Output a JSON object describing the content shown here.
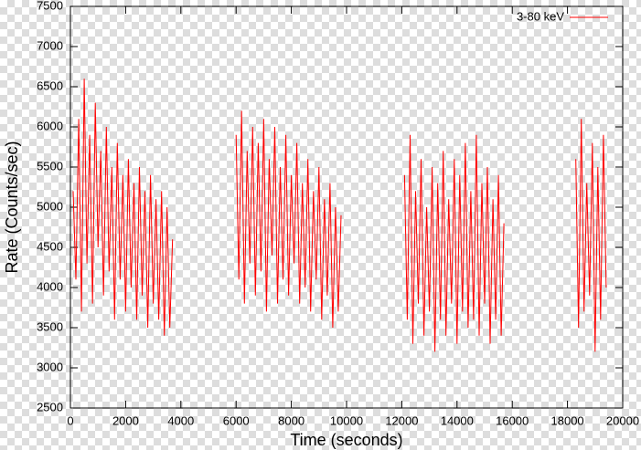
{
  "chart_data": {
    "type": "line",
    "x_label": "Time (seconds)",
    "y_label": "Rate (Counts/sec)",
    "x": [
      100,
      200,
      300,
      400,
      500,
      600,
      700,
      800,
      900,
      1000,
      1100,
      1200,
      1300,
      1400,
      1500,
      1600,
      1700,
      1800,
      1900,
      2000,
      2100,
      2200,
      2300,
      2400,
      2500,
      2600,
      2700,
      2800,
      2900,
      3000,
      3100,
      3200,
      3300,
      3400,
      3500,
      3600,
      3700,
      4850,
      6000,
      6100,
      6200,
      6300,
      6400,
      6500,
      6600,
      6700,
      6800,
      6900,
      7000,
      7100,
      7200,
      7300,
      7400,
      7500,
      7600,
      7700,
      7800,
      7900,
      8000,
      8100,
      8200,
      8300,
      8400,
      8500,
      8600,
      8700,
      8800,
      8900,
      9000,
      9100,
      9200,
      9300,
      9400,
      9500,
      9600,
      9700,
      9800,
      11000,
      12100,
      12200,
      12300,
      12400,
      12500,
      12600,
      12700,
      12800,
      12900,
      13000,
      13100,
      13200,
      13300,
      13400,
      13500,
      13600,
      13700,
      13800,
      13900,
      14000,
      14100,
      14200,
      14300,
      14400,
      14500,
      14600,
      14700,
      14800,
      14900,
      15000,
      15100,
      15200,
      15300,
      15400,
      15500,
      15600,
      15700,
      17000,
      18300,
      18400,
      18500,
      18600,
      18700,
      18800,
      18900,
      19000,
      19100,
      19200,
      19300,
      19400
    ],
    "series": [
      {
        "name": "3-80 keV",
        "color": "#ff0000",
        "values": [
          5200,
          4100,
          6100,
          3700,
          6600,
          4300,
          5900,
          3800,
          6300,
          4500,
          5700,
          3900,
          6000,
          4200,
          5500,
          3600,
          5800,
          4100,
          5400,
          3700,
          5600,
          4000,
          5300,
          3600,
          5500,
          3900,
          5200,
          3500,
          5400,
          3800,
          5100,
          3600,
          5200,
          3400,
          5000,
          3500,
          4600,
          null,
          5900,
          4100,
          6200,
          3800,
          5700,
          4300,
          6000,
          3900,
          5800,
          4200,
          6100,
          3700,
          5600,
          4400,
          6000,
          3800,
          5500,
          4100,
          5900,
          3900,
          5400,
          4300,
          5800,
          3800,
          5300,
          4000,
          5600,
          3700,
          5200,
          4100,
          5500,
          3600,
          5100,
          3900,
          5300,
          3500,
          5000,
          3700,
          4900,
          null,
          5400,
          3600,
          5900,
          3300,
          5200,
          3800,
          5600,
          3400,
          5000,
          3700,
          5500,
          3200,
          5300,
          3600,
          5700,
          3400,
          5100,
          3800,
          5600,
          3300,
          5400,
          3700,
          5800,
          3500,
          5200,
          3600,
          5900,
          3400,
          5300,
          3800,
          5500,
          3300,
          5100,
          3600,
          5400,
          3400,
          4800,
          null,
          5600,
          3500,
          6100,
          3700,
          5300,
          3900,
          5800,
          3200,
          5500,
          3600,
          5900,
          4000
        ]
      }
    ],
    "xlim": [
      0,
      20000
    ],
    "xticks": [
      0,
      2000,
      4000,
      6000,
      8000,
      10000,
      12000,
      14000,
      16000,
      18000,
      20000
    ],
    "ylim": [
      2500,
      7500
    ],
    "yticks": [
      2500,
      3000,
      3500,
      4000,
      4500,
      5000,
      5500,
      6000,
      6500,
      7000,
      7500
    ],
    "legend": "top-right"
  }
}
